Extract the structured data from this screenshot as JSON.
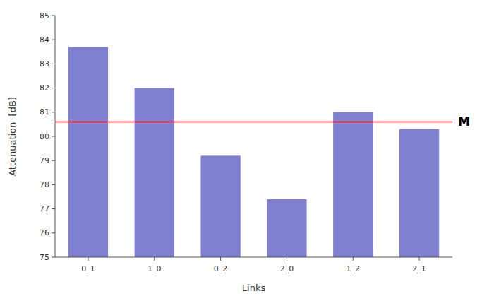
{
  "chart_data": {
    "type": "bar",
    "categories": [
      "0_1",
      "1_0",
      "0_2",
      "2_0",
      "1_2",
      "2_1"
    ],
    "values": [
      83.7,
      82.0,
      79.2,
      77.4,
      81.0,
      80.3
    ],
    "color": "#8080d0",
    "mean_line": {
      "value": 80.6,
      "label": "M",
      "color": "#ff0000"
    },
    "xlabel": "Links",
    "ylabel": "Attenuation  [dB]",
    "ylim": [
      75,
      85
    ],
    "yticks": [
      75,
      76,
      77,
      78,
      79,
      80,
      81,
      82,
      83,
      84,
      85
    ],
    "grid": false
  }
}
